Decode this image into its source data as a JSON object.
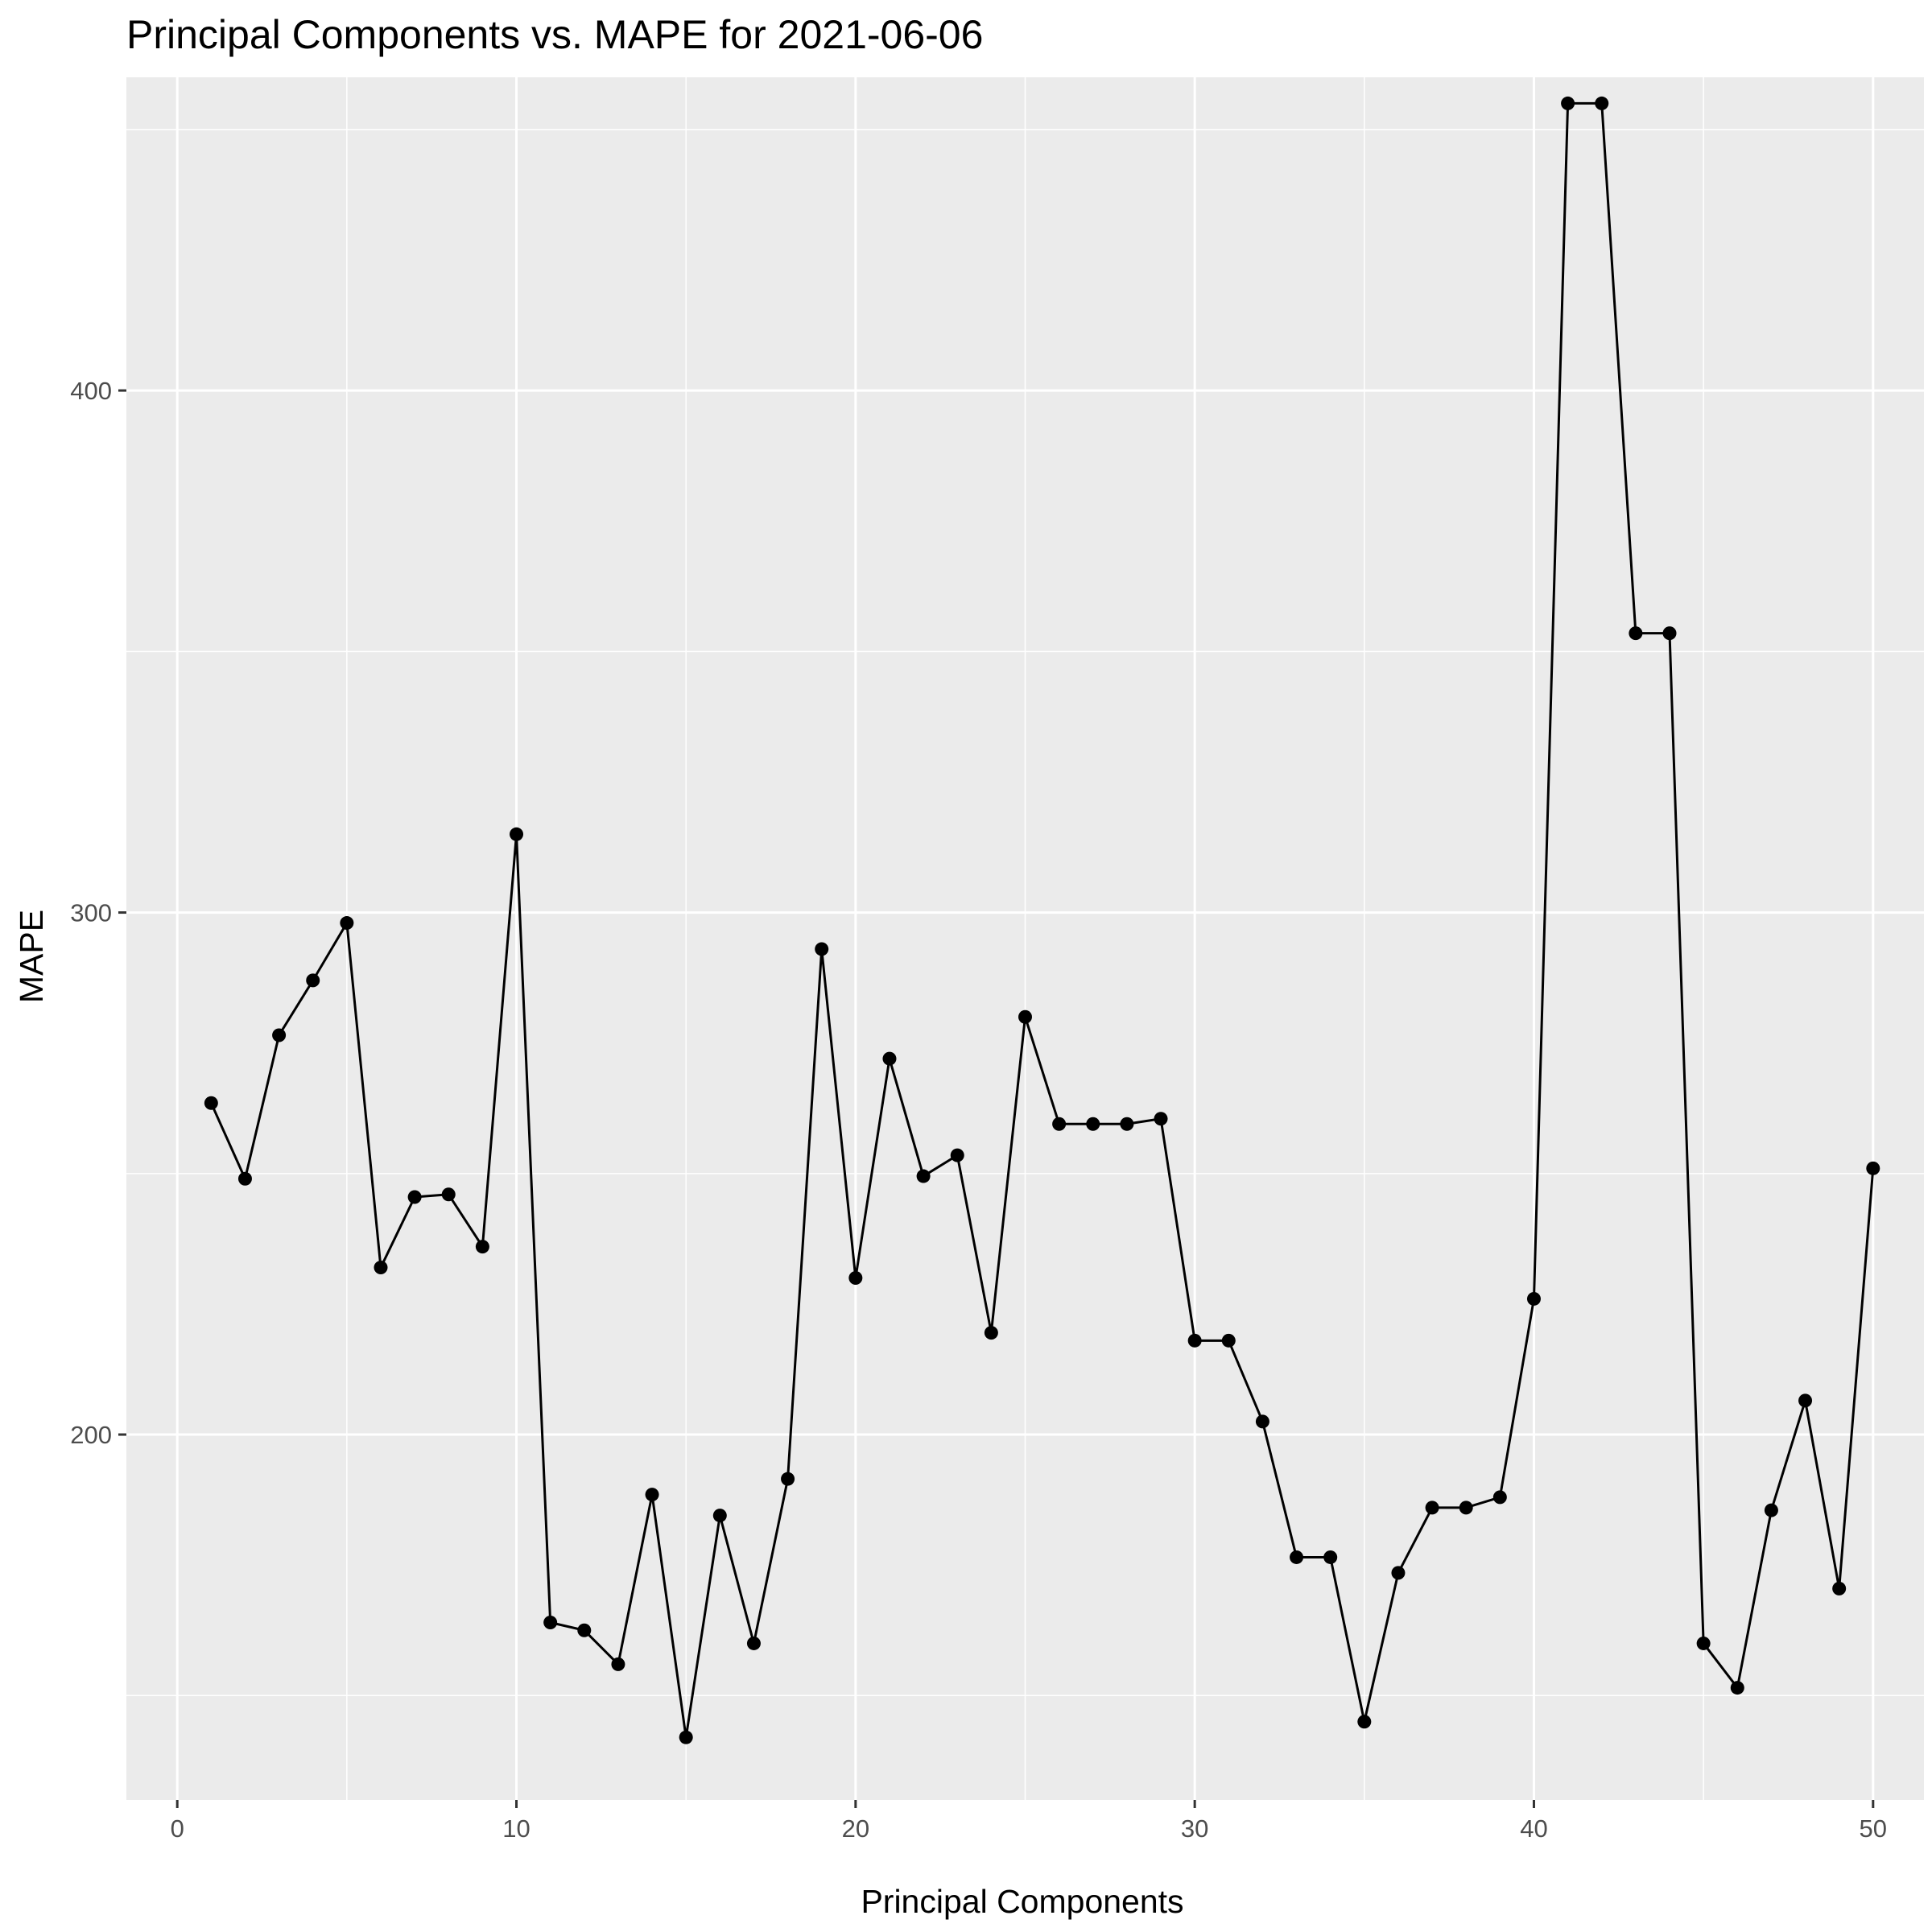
{
  "chart_data": {
    "type": "line",
    "title": "Principal Components vs. MAPE for 2021-06-06",
    "xlabel": "Principal Components",
    "ylabel": "MAPE",
    "xlim": [
      -1.5,
      51.5
    ],
    "ylim": [
      130,
      460
    ],
    "xticks": [
      0,
      10,
      20,
      30,
      40,
      50
    ],
    "xtick_labels": [
      "0",
      "10",
      "20",
      "30",
      "40",
      "50"
    ],
    "yticks": [
      200,
      300,
      400
    ],
    "ytick_labels": [
      "200",
      "300",
      "400"
    ],
    "grid": true,
    "markers": true,
    "series": [
      {
        "x": [
          1,
          2,
          3,
          4,
          5,
          6,
          7,
          8,
          9,
          10,
          11,
          12,
          13,
          14,
          15,
          16,
          17,
          18,
          19,
          20,
          21,
          22,
          23,
          24,
          25,
          26,
          27,
          28,
          29,
          30,
          31,
          32,
          33,
          34,
          35,
          36,
          37,
          38,
          39,
          40,
          41,
          42,
          43,
          44,
          45,
          46,
          47,
          48,
          49,
          50
        ],
        "values": [
          263.5,
          249,
          276.5,
          287,
          298,
          232,
          245.5,
          246,
          236,
          315,
          164,
          162.5,
          156,
          188.5,
          142,
          184.5,
          160,
          191.5,
          293,
          230,
          272,
          249.5,
          253.5,
          219.5,
          280,
          259.5,
          259.5,
          259.5,
          260.5,
          218,
          218,
          202.5,
          176.5,
          176.5,
          145,
          173.5,
          186,
          186,
          188,
          226,
          455,
          455,
          353.5,
          353.5,
          160,
          151.5,
          185.5,
          206.5,
          170.5,
          251
        ]
      }
    ],
    "colors": {
      "panel_background": "#ebebeb",
      "grid": "#ffffff",
      "line": "#000000",
      "point": "#000000",
      "tick_label": "#4d4d4d",
      "tick_mark": "#333333"
    }
  }
}
